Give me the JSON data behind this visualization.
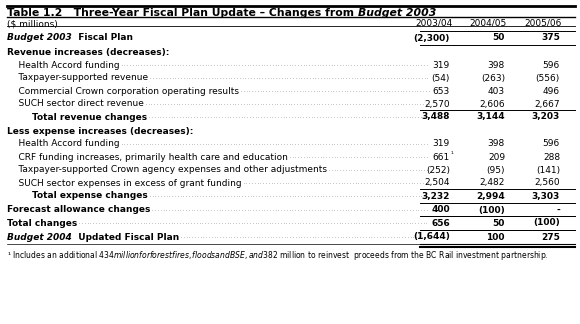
{
  "title_plain": "Table 1.2   Three-Year Fiscal Plan Update – Changes from ",
  "title_italic": "Budget 2003",
  "header_label": "($ millions)",
  "col_headers": [
    "2003/04",
    "2004/05",
    "2005/06"
  ],
  "rows": [
    {
      "label": "Budget 2003",
      "label2": "  Fiscal Plan",
      "values": [
        "(2,300)",
        "50",
        "375"
      ],
      "style": "bold_italic_header",
      "border_top": true,
      "border_bottom": true
    },
    {
      "label": "Revenue increases (decreases):",
      "values": [
        "",
        "",
        ""
      ],
      "style": "bold_section"
    },
    {
      "label": "    Health Accord funding",
      "values": [
        "319",
        "398",
        "596"
      ],
      "style": "normal",
      "dots": true
    },
    {
      "label": "    Taxpayer-supported revenue",
      "values": [
        "(54)",
        "(263)",
        "(556)"
      ],
      "style": "normal",
      "dots": true
    },
    {
      "label": "    Commercial Crown corporation operating results",
      "values": [
        "653",
        "403",
        "496"
      ],
      "style": "normal",
      "dots": true
    },
    {
      "label": "    SUCH sector direct revenue",
      "values": [
        "2,570",
        "2,606",
        "2,667"
      ],
      "style": "normal",
      "dots": true
    },
    {
      "label": "        Total revenue changes",
      "values": [
        "3,488",
        "3,144",
        "3,203"
      ],
      "style": "bold_total",
      "border_top": true,
      "dots": true
    },
    {
      "label": "Less expense increases (decreases):",
      "values": [
        "",
        "",
        ""
      ],
      "style": "bold_section"
    },
    {
      "label": "    Health Accord funding",
      "values": [
        "319",
        "398",
        "596"
      ],
      "style": "normal",
      "dots": true
    },
    {
      "label": "    CRF funding increases, primarily health care and education",
      "values": [
        "661",
        "209",
        "288"
      ],
      "style": "normal",
      "dots": true,
      "superscript": true
    },
    {
      "label": "    Taxpayer-supported Crown agency expenses and other adjustments",
      "values": [
        "(252)",
        "(95)",
        "(141)"
      ],
      "style": "normal",
      "dots": true
    },
    {
      "label": "    SUCH sector expenses in excess of grant funding",
      "values": [
        "2,504",
        "2,482",
        "2,560"
      ],
      "style": "normal",
      "dots": true
    },
    {
      "label": "        Total expense changes",
      "values": [
        "3,232",
        "2,994",
        "3,303"
      ],
      "style": "bold_total",
      "border_top": true,
      "dots": true
    },
    {
      "label": "Forecast allowance changes",
      "values": [
        "400",
        "(100)",
        "-"
      ],
      "style": "bold_plain",
      "border_top": true,
      "border_bottom": true,
      "dots": true
    },
    {
      "label": "Total changes",
      "values": [
        "656",
        "50",
        "(100)"
      ],
      "style": "bold_total",
      "border_top": true,
      "border_bottom": true,
      "dots": true
    },
    {
      "label": "Budget 2004",
      "label2": "  Updated Fiscal Plan",
      "values": [
        "(1,644)",
        "100",
        "275"
      ],
      "style": "bold_italic_final",
      "border_top": true,
      "border_bottom_double": true,
      "dots": true
    }
  ],
  "footnote": "¹ Includes an additional $434 million for forest fires, floods and BSE, and $382 million to reinvest  proceeds from the BC Rail investment partnership.",
  "bg_color": "#ffffff"
}
